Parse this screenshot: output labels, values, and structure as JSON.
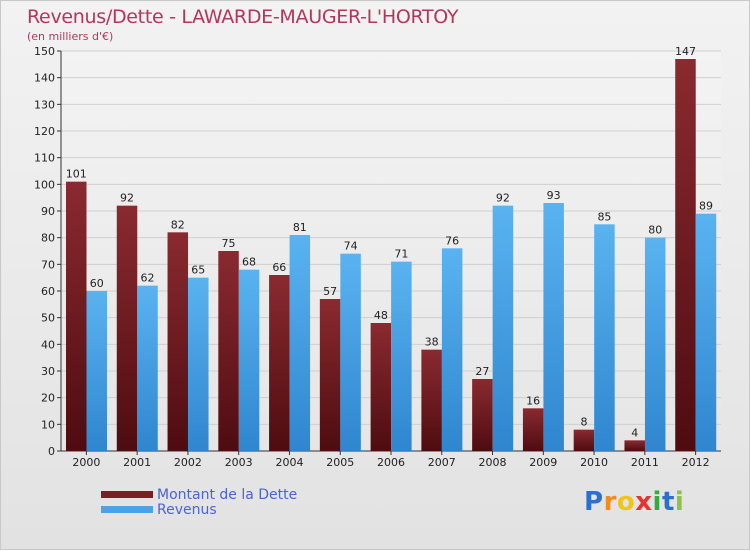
{
  "chart_data": {
    "type": "bar",
    "title": "Revenus/Dette - LAWARDE-MAUGER-L'HORTOY",
    "subtitle": "(en milliers d'€)",
    "categories": [
      "2000",
      "2001",
      "2002",
      "2003",
      "2004",
      "2005",
      "2006",
      "2007",
      "2008",
      "2009",
      "2010",
      "2011",
      "2012"
    ],
    "series": [
      {
        "name": "Montant de la Dette",
        "color": "#7a1f24",
        "values": [
          101,
          92,
          82,
          75,
          66,
          57,
          48,
          38,
          27,
          16,
          8,
          4,
          147
        ]
      },
      {
        "name": "Revenus",
        "color": "#4aa3e6",
        "values": [
          60,
          62,
          65,
          68,
          81,
          74,
          71,
          76,
          92,
          93,
          85,
          80,
          89
        ]
      }
    ],
    "ylim": [
      0,
      150
    ],
    "yticks": [
      0,
      10,
      20,
      30,
      40,
      50,
      60,
      70,
      80,
      90,
      100,
      110,
      120,
      130,
      140,
      150
    ],
    "grid": true,
    "legend": "bottom-left"
  },
  "logo": {
    "letters": [
      {
        "ch": "P",
        "color": "#2c6fd1"
      },
      {
        "ch": "r",
        "color": "#f28a1c"
      },
      {
        "ch": "o",
        "color": "#f0c419"
      },
      {
        "ch": "x",
        "color": "#e3342f"
      },
      {
        "ch": "i",
        "color": "#38a93c"
      },
      {
        "ch": "t",
        "color": "#2c6fd1"
      },
      {
        "ch": "i",
        "color": "#8bc34a"
      }
    ]
  }
}
